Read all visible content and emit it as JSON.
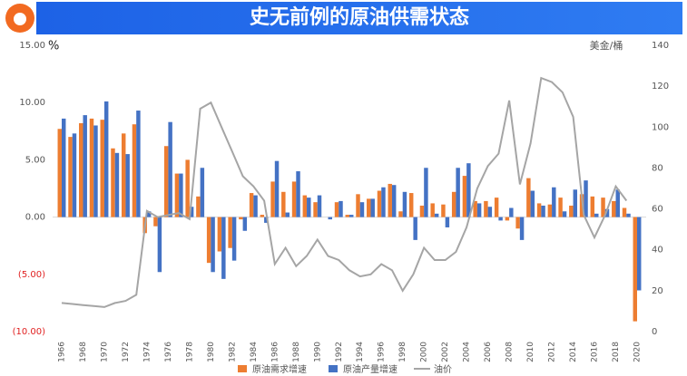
{
  "chart_data": {
    "type": "bar-line",
    "title": "史无前例的原油供需状态",
    "y_unit": "%",
    "y2_label": "美金/桶",
    "categories": [
      "1966",
      null,
      "1968",
      null,
      "1970",
      null,
      "1972",
      null,
      "1974",
      null,
      "1976",
      null,
      "1978",
      null,
      "1980",
      null,
      "1982",
      null,
      "1984",
      null,
      "1986",
      null,
      "1988",
      null,
      "1990",
      null,
      "1992",
      null,
      "1994",
      null,
      "1996",
      null,
      "1998",
      null,
      "2000",
      null,
      "2002",
      null,
      "2004",
      null,
      "2006",
      null,
      "2008",
      null,
      "2010",
      null,
      "2012",
      null,
      "2014",
      null,
      "2016",
      null,
      "2018",
      null,
      "2020"
    ],
    "series": [
      {
        "name": "原油需求增速",
        "color": "#ed7d31",
        "kind": "bar",
        "values": [
          7.7,
          7.0,
          8.2,
          8.6,
          8.5,
          6.0,
          7.3,
          8.1,
          -1.4,
          -0.8,
          6.2,
          3.8,
          5.0,
          1.8,
          -4.0,
          -3.0,
          -2.7,
          -0.2,
          2.1,
          0.2,
          3.1,
          2.2,
          3.1,
          1.9,
          1.3,
          0.0,
          1.3,
          0.2,
          2.0,
          1.6,
          2.3,
          2.9,
          0.5,
          2.1,
          1.0,
          1.2,
          1.1,
          2.2,
          3.6,
          1.4,
          1.4,
          1.7,
          -0.3,
          -1.0,
          3.4,
          1.2,
          1.1,
          1.7,
          1.0,
          2.0,
          1.8,
          1.7,
          1.4,
          0.8,
          -9.1
        ]
      },
      {
        "name": "原油产量增速",
        "color": "#4472c4",
        "kind": "bar",
        "values": [
          8.6,
          7.3,
          8.9,
          8.0,
          10.1,
          5.6,
          5.5,
          9.3,
          0.5,
          -4.8,
          8.3,
          3.8,
          0.9,
          4.3,
          -4.8,
          -5.4,
          -3.8,
          -1.2,
          1.9,
          -0.5,
          4.9,
          0.4,
          4.0,
          1.7,
          1.9,
          -0.2,
          1.4,
          0.2,
          1.3,
          1.6,
          2.6,
          2.8,
          2.2,
          -2.0,
          4.3,
          0.3,
          -0.9,
          4.3,
          4.7,
          1.2,
          0.9,
          -0.3,
          0.8,
          -2.0,
          2.3,
          1.0,
          2.6,
          0.5,
          2.4,
          3.2,
          0.3,
          0.7,
          2.4,
          0.3,
          -6.4
        ]
      },
      {
        "name": "油价",
        "color": "#a5a5a5",
        "kind": "line",
        "axis": "y2",
        "values": [
          14,
          13.5,
          13,
          12.5,
          12,
          14,
          15,
          18,
          59,
          56,
          57,
          58,
          55,
          109,
          112,
          100,
          88,
          76,
          71,
          64,
          33,
          41,
          32,
          37,
          45,
          37,
          35,
          30,
          27,
          28,
          33,
          30,
          20,
          28,
          41,
          35,
          35,
          39,
          51,
          70,
          81,
          87,
          113,
          72,
          92,
          124,
          122,
          117,
          105,
          57,
          46,
          57,
          71,
          64,
          null
        ]
      }
    ],
    "ylim": [
      -10,
      15
    ],
    "yticks": [
      {
        "value": 15,
        "label": "15.00"
      },
      {
        "value": 10,
        "label": "10.00"
      },
      {
        "value": 5,
        "label": "5.00"
      },
      {
        "value": 0,
        "label": "0.00"
      },
      {
        "value": -5,
        "label": "(5.00)"
      },
      {
        "value": -10,
        "label": "(10.00)"
      }
    ],
    "negative_tick_color": "#e02020",
    "y2lim": [
      0,
      140
    ],
    "y2ticks": [
      0,
      20,
      40,
      60,
      80,
      100,
      120,
      140
    ],
    "grid": false,
    "legend": "bottom"
  }
}
